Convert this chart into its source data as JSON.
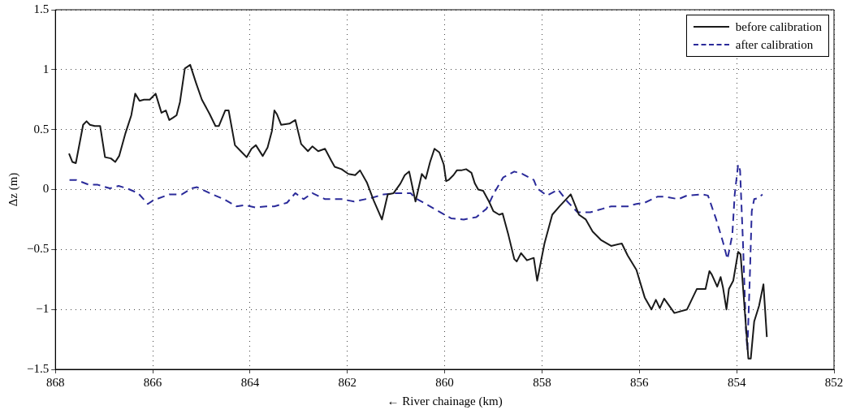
{
  "chart_data": {
    "type": "line",
    "xlabel": "← River chainage (km)",
    "ylabel": "Δz (m)",
    "xlim": [
      868,
      852
    ],
    "xticks": [
      868,
      866,
      864,
      862,
      860,
      858,
      856,
      854,
      852
    ],
    "ylim": [
      -1.5,
      1.5
    ],
    "yticks": [
      {
        "value": -1.5,
        "label": "−1.5"
      },
      {
        "value": -1,
        "label": "−1"
      },
      {
        "value": -0.5,
        "label": "−0.5"
      },
      0,
      0.5,
      1,
      1.5
    ],
    "grid": true,
    "legend": "top right",
    "marker": "none",
    "series": [
      {
        "name": "before calibration",
        "color": "#1a1a1a",
        "line_style": "solid",
        "x": [
          867.72,
          867.65,
          867.58,
          867.43,
          867.36,
          867.29,
          867.19,
          867.08,
          866.98,
          866.86,
          866.77,
          866.69,
          866.56,
          866.44,
          866.36,
          866.27,
          866.18,
          866.06,
          865.94,
          865.82,
          865.73,
          865.66,
          865.58,
          865.51,
          865.44,
          865.34,
          865.23,
          865.11,
          864.99,
          864.83,
          864.71,
          864.64,
          864.51,
          864.44,
          864.31,
          864.19,
          864.07,
          863.97,
          863.88,
          863.74,
          863.64,
          863.55,
          863.5,
          863.45,
          863.36,
          863.19,
          863.07,
          862.95,
          862.81,
          862.72,
          862.6,
          862.46,
          862.33,
          862.26,
          862.12,
          861.98,
          861.84,
          861.74,
          861.6,
          861.46,
          861.29,
          861.17,
          861.05,
          860.91,
          860.82,
          860.73,
          860.6,
          860.47,
          860.39,
          860.3,
          860.21,
          860.11,
          860.02,
          859.97,
          859.92,
          859.82,
          859.75,
          859.66,
          859.56,
          859.45,
          859.38,
          859.31,
          859.21,
          859.09,
          859.0,
          858.88,
          858.81,
          858.69,
          858.57,
          858.52,
          858.43,
          858.31,
          858.17,
          858.1,
          857.95,
          857.79,
          857.64,
          857.41,
          857.24,
          857.1,
          856.96,
          856.79,
          856.58,
          856.36,
          856.24,
          856.06,
          855.89,
          855.75,
          855.66,
          855.58,
          855.49,
          855.28,
          855.02,
          854.82,
          854.64,
          854.56,
          854.51,
          854.4,
          854.33,
          854.28,
          854.21,
          854.16,
          854.07,
          853.97,
          853.92,
          853.81,
          853.76,
          853.71,
          853.64,
          853.54,
          853.45,
          853.38
        ],
        "values": [
          0.3,
          0.23,
          0.22,
          0.54,
          0.57,
          0.54,
          0.53,
          0.53,
          0.27,
          0.26,
          0.23,
          0.28,
          0.47,
          0.62,
          0.8,
          0.74,
          0.75,
          0.75,
          0.8,
          0.64,
          0.66,
          0.58,
          0.6,
          0.62,
          0.73,
          1.01,
          1.04,
          0.89,
          0.75,
          0.63,
          0.53,
          0.53,
          0.66,
          0.66,
          0.37,
          0.32,
          0.27,
          0.34,
          0.37,
          0.28,
          0.35,
          0.49,
          0.66,
          0.63,
          0.54,
          0.55,
          0.58,
          0.38,
          0.32,
          0.36,
          0.32,
          0.34,
          0.24,
          0.19,
          0.17,
          0.13,
          0.12,
          0.16,
          0.06,
          -0.09,
          -0.25,
          -0.04,
          -0.03,
          0.05,
          0.12,
          0.15,
          -0.1,
          0.13,
          0.09,
          0.23,
          0.34,
          0.31,
          0.21,
          0.07,
          0.08,
          0.12,
          0.16,
          0.16,
          0.17,
          0.14,
          0.05,
          0.0,
          -0.01,
          -0.1,
          -0.18,
          -0.21,
          -0.2,
          -0.38,
          -0.58,
          -0.6,
          -0.53,
          -0.59,
          -0.57,
          -0.76,
          -0.45,
          -0.21,
          -0.14,
          -0.04,
          -0.21,
          -0.25,
          -0.35,
          -0.42,
          -0.47,
          -0.45,
          -0.55,
          -0.67,
          -0.9,
          -1.0,
          -0.92,
          -0.99,
          -0.91,
          -1.03,
          -1.0,
          -0.83,
          -0.83,
          -0.68,
          -0.71,
          -0.81,
          -0.73,
          -0.82,
          -1.0,
          -0.83,
          -0.76,
          -0.52,
          -0.54,
          -1.14,
          -1.41,
          -1.41,
          -1.1,
          -0.97,
          -0.79,
          -1.23
        ]
      },
      {
        "name": "after calibration",
        "color": "#2b2b9a",
        "line_style": "dashed",
        "x": [
          867.71,
          867.57,
          867.31,
          867.13,
          866.88,
          866.7,
          866.53,
          866.3,
          866.1,
          865.99,
          865.66,
          865.4,
          865.2,
          865.09,
          864.83,
          864.54,
          864.28,
          864.11,
          863.88,
          863.67,
          863.5,
          863.24,
          863.07,
          862.9,
          862.72,
          862.46,
          862.12,
          861.86,
          861.51,
          861.25,
          860.99,
          860.7,
          860.61,
          860.39,
          860.13,
          859.87,
          859.61,
          859.35,
          859.14,
          859.0,
          858.8,
          858.57,
          858.4,
          858.17,
          858.1,
          857.9,
          857.67,
          857.48,
          857.27,
          857.01,
          856.75,
          856.58,
          856.41,
          856.24,
          856.06,
          855.89,
          855.63,
          855.46,
          855.2,
          855.02,
          854.71,
          854.59,
          854.42,
          854.28,
          854.19,
          854.09,
          854.04,
          853.97,
          853.93,
          853.87,
          853.81,
          853.78,
          853.73,
          853.69,
          853.64,
          853.55,
          853.47
        ],
        "values": [
          0.08,
          0.08,
          0.04,
          0.04,
          0.01,
          0.03,
          0.01,
          -0.03,
          -0.12,
          -0.09,
          -0.04,
          -0.04,
          0.01,
          0.02,
          -0.03,
          -0.08,
          -0.14,
          -0.13,
          -0.15,
          -0.14,
          -0.14,
          -0.11,
          -0.03,
          -0.08,
          -0.03,
          -0.08,
          -0.08,
          -0.1,
          -0.07,
          -0.04,
          -0.03,
          -0.03,
          -0.07,
          -0.12,
          -0.18,
          -0.24,
          -0.25,
          -0.23,
          -0.16,
          -0.04,
          0.1,
          0.15,
          0.13,
          0.08,
          0.01,
          -0.05,
          0.0,
          -0.1,
          -0.19,
          -0.19,
          -0.16,
          -0.14,
          -0.14,
          -0.14,
          -0.12,
          -0.11,
          -0.06,
          -0.06,
          -0.08,
          -0.05,
          -0.04,
          -0.05,
          -0.25,
          -0.44,
          -0.58,
          -0.38,
          -0.04,
          0.21,
          0.16,
          -0.45,
          -1.17,
          -1.34,
          -0.73,
          -0.18,
          -0.08,
          -0.07,
          -0.04
        ]
      }
    ]
  }
}
